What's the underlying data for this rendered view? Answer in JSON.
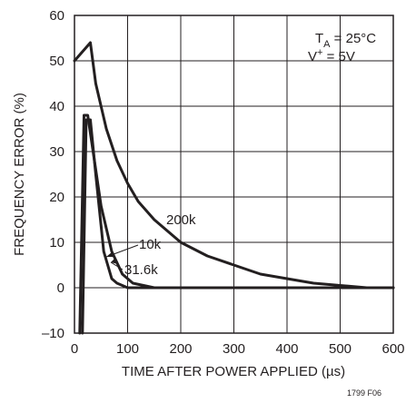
{
  "chart_data": {
    "type": "line",
    "xlabel": "TIME AFTER POWER APPLIED (µs)",
    "ylabel": "FREQUENCY ERROR (%)",
    "xlim": [
      0,
      600
    ],
    "ylim": [
      -10,
      60
    ],
    "xticks": [
      "0",
      "100",
      "200",
      "300",
      "400",
      "500",
      "600"
    ],
    "yticks": [
      "–10",
      "0",
      "10",
      "20",
      "30",
      "40",
      "50",
      "60"
    ],
    "grid": true,
    "conditions": {
      "ta_main": "T",
      "ta_sub": "A",
      "ta_value": " = 25°C",
      "v_main": "V",
      "v_sup": "+",
      "v_value": " = 5V"
    },
    "figure_id": "1799 F06",
    "series": [
      {
        "name": "200k",
        "x": [
          0,
          30,
          40,
          60,
          80,
          100,
          120,
          150,
          200,
          250,
          300,
          350,
          400,
          450,
          500,
          550,
          600
        ],
        "y": [
          50,
          54,
          45,
          35,
          28,
          23,
          19,
          15,
          10,
          7,
          5,
          3,
          2,
          1,
          0.5,
          0,
          0
        ]
      },
      {
        "name": "31.6k",
        "x": [
          10,
          18,
          25,
          35,
          50,
          70,
          90,
          110,
          130,
          150,
          200,
          300,
          400,
          500,
          600
        ],
        "y": [
          -10,
          38,
          38,
          30,
          18,
          8,
          3,
          1,
          0.5,
          0,
          0,
          0,
          0,
          0,
          0
        ]
      },
      {
        "name": "10k",
        "x": [
          15,
          22,
          30,
          40,
          55,
          70,
          80,
          90,
          100,
          120,
          150,
          200,
          300,
          400,
          500,
          600
        ],
        "y": [
          -10,
          37,
          37,
          25,
          8,
          2,
          1,
          0.5,
          0,
          0,
          0,
          0,
          0,
          0,
          0,
          0
        ]
      }
    ],
    "annotations": {
      "label_200k": "200k",
      "label_10k": "10k",
      "label_31k": "31.6k"
    }
  }
}
